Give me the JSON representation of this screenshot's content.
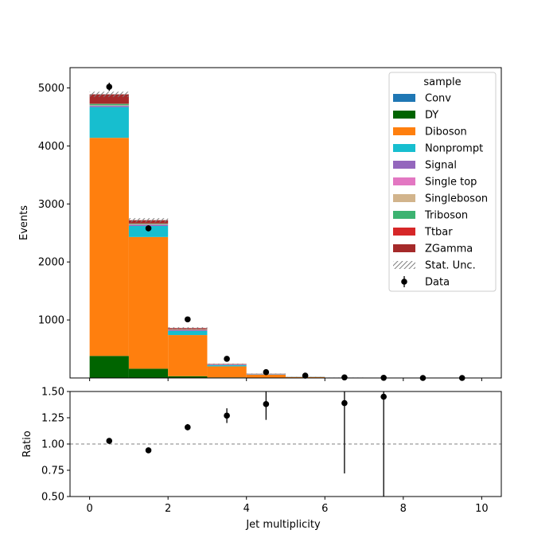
{
  "chart_data": [
    {
      "type": "bar",
      "stacked": true,
      "ylabel": "Events",
      "xlabel": "",
      "xlim": [
        -0.5,
        10.5
      ],
      "ylim": [
        0,
        5350
      ],
      "x_bins": [
        [
          0,
          1
        ],
        [
          1,
          2
        ],
        [
          2,
          3
        ],
        [
          3,
          4
        ],
        [
          4,
          5
        ],
        [
          5,
          6
        ],
        [
          6,
          7
        ],
        [
          7,
          8
        ],
        [
          8,
          9
        ],
        [
          9,
          10
        ]
      ],
      "y_ticks": [
        1000,
        2000,
        3000,
        4000,
        5000
      ],
      "x_ticks": [
        0,
        2,
        4,
        6,
        8,
        10
      ],
      "series": [
        {
          "name": "Conv",
          "color": "#1f77b4",
          "values": [
            0,
            0,
            0,
            0,
            0,
            0,
            0,
            0,
            0,
            0
          ]
        },
        {
          "name": "DY",
          "color": "#006400",
          "values": [
            380,
            160,
            30,
            10,
            3,
            1,
            0,
            0,
            0,
            0
          ]
        },
        {
          "name": "Diboson",
          "color": "#ff7f0e",
          "values": [
            3760,
            2270,
            710,
            190,
            55,
            15,
            5,
            2,
            0,
            0
          ]
        },
        {
          "name": "Nonprompt",
          "color": "#17becf",
          "values": [
            530,
            190,
            70,
            20,
            5,
            2,
            1,
            0,
            0,
            0
          ]
        },
        {
          "name": "Signal",
          "color": "#9467bd",
          "values": [
            20,
            20,
            15,
            10,
            5,
            2,
            1,
            0,
            0,
            0
          ]
        },
        {
          "name": "Single top",
          "color": "#e377c2",
          "values": [
            5,
            5,
            3,
            2,
            1,
            0,
            0,
            0,
            0,
            0
          ]
        },
        {
          "name": "Singleboson",
          "color": "#d2b48c",
          "values": [
            5,
            5,
            2,
            1,
            0,
            0,
            0,
            0,
            0,
            0
          ]
        },
        {
          "name": "Triboson",
          "color": "#3cb371",
          "values": [
            25,
            10,
            5,
            3,
            2,
            1,
            0,
            0,
            0,
            0
          ]
        },
        {
          "name": "Ttbar",
          "color": "#d62728",
          "values": [
            5,
            5,
            5,
            2,
            1,
            0,
            0,
            0,
            0,
            0
          ]
        },
        {
          "name": "ZGamma",
          "color": "#a52a2a",
          "values": [
            160,
            55,
            20,
            5,
            2,
            0,
            0,
            0,
            0,
            0
          ]
        }
      ],
      "stat_unc": {
        "label": "Stat. Unc.",
        "color": "#808080",
        "values": [
          45,
          35,
          15,
          5,
          3,
          1,
          1,
          1,
          0,
          0
        ]
      },
      "data": {
        "label": "Data",
        "x": [
          0.5,
          1.5,
          2.5,
          3.5,
          4.5,
          5.5,
          6.5,
          7.5,
          8.5,
          9.5
        ],
        "y": [
          5020,
          2580,
          1010,
          330,
          100,
          40,
          10,
          3,
          0,
          0
        ],
        "err": [
          71,
          51,
          32,
          18,
          10,
          6,
          3,
          2,
          0,
          0
        ]
      },
      "legend": {
        "title": "sample",
        "placement": "upper right"
      }
    },
    {
      "type": "scatter",
      "ylabel": "Ratio",
      "xlabel": "Jet multiplicity",
      "xlim": [
        -0.5,
        10.5
      ],
      "ylim": [
        0.5,
        1.5
      ],
      "x_ticks": [
        0,
        2,
        4,
        6,
        8,
        10
      ],
      "y_ticks": [
        0.5,
        0.75,
        1.0,
        1.25,
        1.5
      ],
      "y_tick_labels": [
        "0.50",
        "0.75",
        "1.00",
        "1.25",
        "1.50"
      ],
      "reference_line": 1.0,
      "x": [
        0.5,
        1.5,
        2.5,
        3.5,
        4.5,
        6.5,
        7.5
      ],
      "y": [
        1.03,
        0.94,
        1.16,
        1.27,
        1.38,
        1.39,
        1.45
      ],
      "err_low": [
        0.015,
        0.02,
        0.03,
        0.07,
        0.15,
        0.67,
        0.95
      ],
      "err_high": [
        0.015,
        0.02,
        0.03,
        0.07,
        0.15,
        0.2,
        0.2
      ]
    }
  ]
}
